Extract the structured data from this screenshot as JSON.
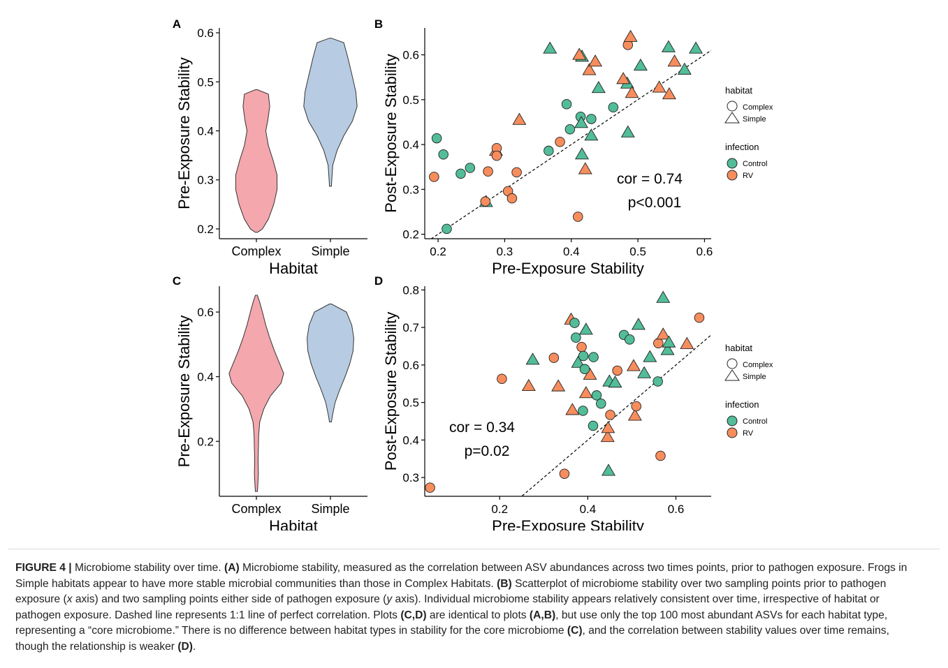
{
  "caption": {
    "label": "FIGURE 4 |",
    "parts": [
      {
        "t": " Microbiome stability over time. "
      },
      {
        "t": "(A)",
        "b": true
      },
      {
        "t": " Microbiome stability, measured as the correlation between ASV abundances across two times points, prior to pathogen exposure. Frogs in Simple habitats appear to have more stable microbial communities than those in Complex Habitats. "
      },
      {
        "t": "(B)",
        "b": true
      },
      {
        "t": " Scatterplot of microbiome stability over two sampling points prior to pathogen exposure ("
      },
      {
        "t": "x",
        "i": true
      },
      {
        "t": " axis) and two sampling points either side of pathogen exposure ("
      },
      {
        "t": "y",
        "i": true
      },
      {
        "t": " axis). Individual microbiome stability appears relatively consistent over time, irrespective of habitat or pathogen exposure. Dashed line represents 1:1 line of perfect correlation. Plots "
      },
      {
        "t": "(C,D)",
        "b": true
      },
      {
        "t": " are identical to plots "
      },
      {
        "t": "(A,B)",
        "b": true
      },
      {
        "t": ", but use only the top 100 most abundant ASVs for each habitat type, representing a “core microbiome.” There is no difference between habitat types in stability for the core microbiome "
      },
      {
        "t": "(C)",
        "b": true
      },
      {
        "t": ", and the correlation between stability values over time remains, though the relationship is weaker "
      },
      {
        "t": "(D)",
        "b": true
      },
      {
        "t": "."
      }
    ]
  },
  "colors": {
    "complex_violin": "#f4a7ad",
    "simple_violin": "#b7cce2",
    "control": "#52bd98",
    "rv": "#f78d5d"
  },
  "legend": {
    "habitat_title": "habitat",
    "habitat_items": [
      "Complex",
      "Simple"
    ],
    "infection_title": "infection",
    "infection_items": [
      "Control",
      "RV"
    ]
  },
  "chart_data": [
    {
      "panel": "A",
      "type": "violin",
      "xlabel": "Habitat",
      "ylabel": "Pre-Exposure Stability",
      "categories": [
        "Complex",
        "Simple"
      ],
      "ylim": [
        0.18,
        0.61
      ],
      "yticks": [
        0.2,
        0.3,
        0.4,
        0.5,
        0.6
      ],
      "yticklabels": [
        "0.2",
        "0.3",
        "0.4",
        "0.5",
        "0.6"
      ],
      "violins": [
        {
          "name": "Complex",
          "color": "#f4a7ad",
          "profile": [
            [
              0.193,
              0.03
            ],
            [
              0.2,
              0.18
            ],
            [
              0.22,
              0.36
            ],
            [
              0.25,
              0.52
            ],
            [
              0.28,
              0.62
            ],
            [
              0.31,
              0.62
            ],
            [
              0.34,
              0.5
            ],
            [
              0.37,
              0.36
            ],
            [
              0.4,
              0.28
            ],
            [
              0.42,
              0.34
            ],
            [
              0.45,
              0.4
            ],
            [
              0.475,
              0.36
            ],
            [
              0.484,
              0.03
            ]
          ]
        },
        {
          "name": "Simple",
          "color": "#b7cce2",
          "profile": [
            [
              0.287,
              0.03
            ],
            [
              0.3,
              0.04
            ],
            [
              0.33,
              0.07
            ],
            [
              0.36,
              0.2
            ],
            [
              0.39,
              0.4
            ],
            [
              0.42,
              0.66
            ],
            [
              0.45,
              0.8
            ],
            [
              0.48,
              0.76
            ],
            [
              0.51,
              0.66
            ],
            [
              0.55,
              0.52
            ],
            [
              0.58,
              0.4
            ],
            [
              0.589,
              0.03
            ]
          ]
        }
      ]
    },
    {
      "panel": "B",
      "type": "scatter",
      "xlabel": "Pre-Exposure Stability",
      "ylabel": "Post-Exposure Stability",
      "xlim": [
        0.18,
        0.61
      ],
      "ylim": [
        0.19,
        0.66
      ],
      "xticks": [
        0.2,
        0.3,
        0.4,
        0.5,
        0.6
      ],
      "xticklabels": [
        "0.2",
        "0.3",
        "0.4",
        "0.5",
        "0.6"
      ],
      "yticks": [
        0.2,
        0.3,
        0.4,
        0.5,
        0.6
      ],
      "yticklabels": [
        "0.2",
        "0.3",
        "0.4",
        "0.5",
        "0.6"
      ],
      "refline": "1:1",
      "annotation": [
        "cor = 0.74",
        "p<0.001"
      ],
      "points": [
        [
          0.198,
          0.414,
          "Complex",
          "Control"
        ],
        [
          0.208,
          0.378,
          "Complex",
          "Control"
        ],
        [
          0.213,
          0.212,
          "Complex",
          "Control"
        ],
        [
          0.234,
          0.335,
          "Complex",
          "Control"
        ],
        [
          0.248,
          0.348,
          "Complex",
          "Control"
        ],
        [
          0.272,
          0.272,
          "Simple",
          "Control"
        ],
        [
          0.366,
          0.386,
          "Complex",
          "Control"
        ],
        [
          0.368,
          0.614,
          "Simple",
          "Control"
        ],
        [
          0.393,
          0.49,
          "Complex",
          "Control"
        ],
        [
          0.398,
          0.434,
          "Complex",
          "Control"
        ],
        [
          0.414,
          0.462,
          "Complex",
          "Control"
        ],
        [
          0.415,
          0.448,
          "Simple",
          "Control"
        ],
        [
          0.416,
          0.596,
          "Simple",
          "Control"
        ],
        [
          0.416,
          0.378,
          "Simple",
          "Control"
        ],
        [
          0.43,
          0.457,
          "Complex",
          "Control"
        ],
        [
          0.43,
          0.42,
          "Simple",
          "Control"
        ],
        [
          0.441,
          0.526,
          "Simple",
          "Control"
        ],
        [
          0.463,
          0.483,
          "Complex",
          "Control"
        ],
        [
          0.484,
          0.536,
          "Simple",
          "Control"
        ],
        [
          0.485,
          0.427,
          "Simple",
          "Control"
        ],
        [
          0.504,
          0.576,
          "Simple",
          "Control"
        ],
        [
          0.546,
          0.617,
          "Simple",
          "Control"
        ],
        [
          0.57,
          0.567,
          "Simple",
          "Control"
        ],
        [
          0.587,
          0.614,
          "Simple",
          "Control"
        ],
        [
          0.194,
          0.328,
          "Complex",
          "RV"
        ],
        [
          0.271,
          0.273,
          "Complex",
          "RV"
        ],
        [
          0.275,
          0.34,
          "Complex",
          "RV"
        ],
        [
          0.287,
          0.386,
          "Simple",
          "RV"
        ],
        [
          0.288,
          0.392,
          "Complex",
          "RV"
        ],
        [
          0.288,
          0.375,
          "Complex",
          "RV"
        ],
        [
          0.305,
          0.296,
          "Complex",
          "RV"
        ],
        [
          0.311,
          0.28,
          "Complex",
          "RV"
        ],
        [
          0.318,
          0.338,
          "Complex",
          "RV"
        ],
        [
          0.322,
          0.455,
          "Simple",
          "RV"
        ],
        [
          0.383,
          0.406,
          "Complex",
          "RV"
        ],
        [
          0.41,
          0.239,
          "Complex",
          "RV"
        ],
        [
          0.412,
          0.6,
          "Simple",
          "RV"
        ],
        [
          0.421,
          0.345,
          "Simple",
          "RV"
        ],
        [
          0.427,
          0.566,
          "Simple",
          "RV"
        ],
        [
          0.436,
          0.585,
          "Simple",
          "RV"
        ],
        [
          0.478,
          0.546,
          "Simple",
          "RV"
        ],
        [
          0.485,
          0.622,
          "Complex",
          "RV"
        ],
        [
          0.489,
          0.64,
          "Simple",
          "RV"
        ],
        [
          0.491,
          0.515,
          "Simple",
          "RV"
        ],
        [
          0.532,
          0.527,
          "Simple",
          "RV"
        ],
        [
          0.547,
          0.512,
          "Simple",
          "RV"
        ],
        [
          0.555,
          0.585,
          "Simple",
          "RV"
        ]
      ]
    },
    {
      "panel": "C",
      "type": "violin",
      "xlabel": "Habitat",
      "ylabel": "Pre-Exposure Stability",
      "categories": [
        "Complex",
        "Simple"
      ],
      "ylim": [
        0.03,
        0.68
      ],
      "yticks": [
        0.2,
        0.4,
        0.6
      ],
      "yticklabels": [
        "0.2",
        "0.4",
        "0.6"
      ],
      "violins": [
        {
          "name": "Complex",
          "color": "#f4a7ad",
          "profile": [
            [
              0.045,
              0.03
            ],
            [
              0.06,
              0.04
            ],
            [
              0.1,
              0.06
            ],
            [
              0.14,
              0.05
            ],
            [
              0.18,
              0.06
            ],
            [
              0.22,
              0.07
            ],
            [
              0.26,
              0.1
            ],
            [
              0.3,
              0.22
            ],
            [
              0.34,
              0.42
            ],
            [
              0.38,
              0.74
            ],
            [
              0.41,
              0.82
            ],
            [
              0.44,
              0.7
            ],
            [
              0.48,
              0.54
            ],
            [
              0.52,
              0.4
            ],
            [
              0.56,
              0.28
            ],
            [
              0.6,
              0.18
            ],
            [
              0.63,
              0.1
            ],
            [
              0.652,
              0.03
            ]
          ]
        },
        {
          "name": "Simple",
          "color": "#b7cce2",
          "profile": [
            [
              0.26,
              0.03
            ],
            [
              0.28,
              0.06
            ],
            [
              0.32,
              0.14
            ],
            [
              0.36,
              0.28
            ],
            [
              0.4,
              0.44
            ],
            [
              0.44,
              0.58
            ],
            [
              0.48,
              0.68
            ],
            [
              0.52,
              0.7
            ],
            [
              0.56,
              0.64
            ],
            [
              0.6,
              0.48
            ],
            [
              0.625,
              0.03
            ]
          ]
        }
      ]
    },
    {
      "panel": "D",
      "type": "scatter",
      "xlabel": "Pre-Exposure Stability",
      "ylabel": "Post-Exposure Stability",
      "xlim": [
        0.03,
        0.68
      ],
      "ylim": [
        0.25,
        0.81
      ],
      "xticks": [
        0.2,
        0.4,
        0.6
      ],
      "xticklabels": [
        "0.2",
        "0.4",
        "0.6"
      ],
      "yticks": [
        0.3,
        0.4,
        0.5,
        0.6,
        0.7,
        0.8
      ],
      "yticklabels": [
        "0.3",
        "0.4",
        "0.5",
        "0.6",
        "0.7",
        "0.8"
      ],
      "refline": "1:1",
      "annotation": [
        "cor = 0.34",
        "p=0.02"
      ],
      "points": [
        [
          0.042,
          0.273,
          "Complex",
          "RV"
        ],
        [
          0.205,
          0.563,
          "Complex",
          "RV"
        ],
        [
          0.266,
          0.544,
          "Simple",
          "RV"
        ],
        [
          0.323,
          0.619,
          "Complex",
          "RV"
        ],
        [
          0.333,
          0.543,
          "Simple",
          "RV"
        ],
        [
          0.347,
          0.31,
          "Complex",
          "RV"
        ],
        [
          0.362,
          0.721,
          "Simple",
          "RV"
        ],
        [
          0.365,
          0.48,
          "Simple",
          "RV"
        ],
        [
          0.386,
          0.648,
          "Complex",
          "RV"
        ],
        [
          0.396,
          0.525,
          "Simple",
          "RV"
        ],
        [
          0.405,
          0.574,
          "Simple",
          "RV"
        ],
        [
          0.445,
          0.408,
          "Simple",
          "RV"
        ],
        [
          0.446,
          0.432,
          "Simple",
          "RV"
        ],
        [
          0.451,
          0.467,
          "Complex",
          "RV"
        ],
        [
          0.467,
          0.585,
          "Complex",
          "RV"
        ],
        [
          0.504,
          0.597,
          "Simple",
          "RV"
        ],
        [
          0.507,
          0.465,
          "Simple",
          "RV"
        ],
        [
          0.51,
          0.49,
          "Complex",
          "RV"
        ],
        [
          0.56,
          0.658,
          "Complex",
          "RV"
        ],
        [
          0.565,
          0.358,
          "Complex",
          "RV"
        ],
        [
          0.571,
          0.681,
          "Simple",
          "RV"
        ],
        [
          0.625,
          0.656,
          "Simple",
          "RV"
        ],
        [
          0.653,
          0.726,
          "Complex",
          "RV"
        ],
        [
          0.275,
          0.614,
          "Simple",
          "Control"
        ],
        [
          0.37,
          0.712,
          "Complex",
          "Control"
        ],
        [
          0.373,
          0.673,
          "Complex",
          "Control"
        ],
        [
          0.378,
          0.606,
          "Simple",
          "Control"
        ],
        [
          0.389,
          0.478,
          "Complex",
          "Control"
        ],
        [
          0.39,
          0.624,
          "Complex",
          "Control"
        ],
        [
          0.393,
          0.589,
          "Complex",
          "Control"
        ],
        [
          0.396,
          0.694,
          "Simple",
          "Control"
        ],
        [
          0.413,
          0.621,
          "Complex",
          "Control"
        ],
        [
          0.412,
          0.438,
          "Complex",
          "Control"
        ],
        [
          0.42,
          0.519,
          "Complex",
          "Control"
        ],
        [
          0.43,
          0.497,
          "Complex",
          "Control"
        ],
        [
          0.447,
          0.318,
          "Simple",
          "Control"
        ],
        [
          0.449,
          0.556,
          "Simple",
          "Control"
        ],
        [
          0.462,
          0.553,
          "Simple",
          "Control"
        ],
        [
          0.482,
          0.68,
          "Complex",
          "Control"
        ],
        [
          0.495,
          0.668,
          "Complex",
          "Control"
        ],
        [
          0.515,
          0.707,
          "Simple",
          "Control"
        ],
        [
          0.528,
          0.578,
          "Simple",
          "Control"
        ],
        [
          0.541,
          0.621,
          "Simple",
          "Control"
        ],
        [
          0.559,
          0.556,
          "Complex",
          "Control"
        ],
        [
          0.571,
          0.779,
          "Simple",
          "Control"
        ],
        [
          0.581,
          0.64,
          "Simple",
          "Control"
        ],
        [
          0.584,
          0.66,
          "Simple",
          "Control"
        ]
      ]
    }
  ]
}
